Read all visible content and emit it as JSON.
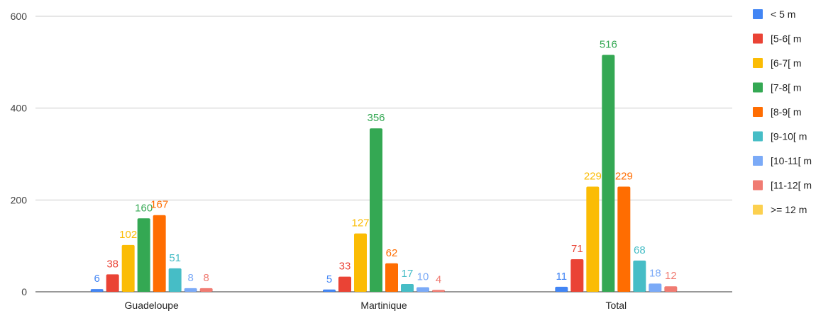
{
  "chart_data": {
    "type": "bar",
    "title": "",
    "xlabel": "",
    "ylabel": "",
    "ylim": [
      0,
      600
    ],
    "yticks": [
      0,
      200,
      400,
      600
    ],
    "grid": true,
    "legend_position": "right",
    "categories": [
      "Guadeloupe",
      "Martinique",
      "Total"
    ],
    "series": [
      {
        "name": "< 5 m",
        "color": "#4285f4",
        "values": [
          6,
          5,
          11
        ]
      },
      {
        "name": "[5-6[ m",
        "color": "#ea4335",
        "values": [
          38,
          33,
          71
        ]
      },
      {
        "name": "[6-7[ m",
        "color": "#fbbc04",
        "values": [
          102,
          127,
          229
        ]
      },
      {
        "name": "[7-8[ m",
        "color": "#34a853",
        "values": [
          160,
          356,
          516
        ]
      },
      {
        "name": "[8-9[ m",
        "color": "#ff6d01",
        "values": [
          167,
          62,
          229
        ]
      },
      {
        "name": "[9-10[ m",
        "color": "#46bdc6",
        "values": [
          51,
          17,
          68
        ]
      },
      {
        "name": "[10-11[ m",
        "color": "#7baaf7",
        "values": [
          8,
          10,
          18
        ]
      },
      {
        "name": "[11-12[ m",
        "color": "#f07b72",
        "values": [
          8,
          4,
          12
        ]
      },
      {
        "name": ">= 12 m",
        "color": "#fcd04f",
        "values": [
          0,
          0,
          0
        ]
      }
    ]
  }
}
